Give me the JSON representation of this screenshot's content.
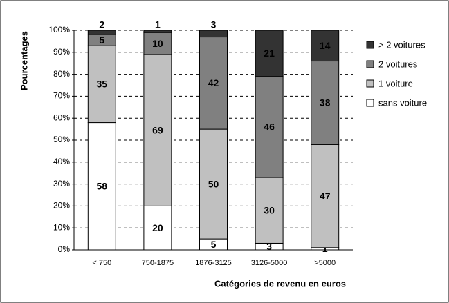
{
  "chart_data": {
    "type": "stacked_bar",
    "y_label": "Pourcentages",
    "x_label": "Catégories de revenu en euros",
    "categories": [
      "< 750",
      "750-1875",
      "1876-3125",
      "3126-5000",
      ">5000"
    ],
    "series": [
      {
        "name": "sans voiture",
        "color": "#ffffff",
        "values": [
          58,
          20,
          5,
          3,
          1
        ]
      },
      {
        "name": "1 voiture",
        "color": "#c0c0c0",
        "values": [
          35,
          69,
          50,
          30,
          47
        ]
      },
      {
        "name": "2 voitures",
        "color": "#808080",
        "values": [
          5,
          10,
          42,
          46,
          38
        ]
      },
      {
        "name": "> 2 voitures",
        "color": "#333333",
        "values": [
          2,
          1,
          3,
          21,
          14
        ]
      }
    ],
    "ylim": [
      0,
      100
    ],
    "yticks": [
      {
        "value": 0,
        "label": "0%"
      },
      {
        "value": 10,
        "label": "10%"
      },
      {
        "value": 20,
        "label": "20%"
      },
      {
        "value": 30,
        "label": "30%"
      },
      {
        "value": 40,
        "label": "40%"
      },
      {
        "value": 50,
        "label": "50%"
      },
      {
        "value": 60,
        "label": "60%"
      },
      {
        "value": 70,
        "label": "70%"
      },
      {
        "value": 80,
        "label": "80%"
      },
      {
        "value": 90,
        "label": "90%"
      },
      {
        "value": 100,
        "label": "100%"
      }
    ],
    "grid": true
  }
}
